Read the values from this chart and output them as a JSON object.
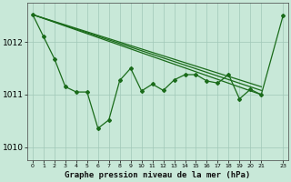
{
  "title": "Graphe pression niveau de la mer (hPa)",
  "bg_color": "#c8e8d8",
  "line_color": "#1a6b1a",
  "grid_color": "#a0c8b8",
  "xlim": [
    -0.5,
    23.5
  ],
  "ylim": [
    1009.75,
    1012.75
  ],
  "yticks": [
    1010,
    1011,
    1012
  ],
  "xtick_labels": [
    "0",
    "1",
    "2",
    "3",
    "4",
    "5",
    "6",
    "7",
    "8",
    "9",
    "10",
    "11",
    "12",
    "13",
    "14",
    "15",
    "16",
    "17",
    "18",
    "19",
    "20",
    "21",
    "23"
  ],
  "xtick_pos": [
    0,
    1,
    2,
    3,
    4,
    5,
    6,
    7,
    8,
    9,
    10,
    11,
    12,
    13,
    14,
    15,
    16,
    17,
    18,
    19,
    20,
    21,
    23
  ],
  "smooth_line1_x": [
    0,
    21
  ],
  "smooth_line1_y": [
    1012.52,
    1011.0
  ],
  "smooth_line2_x": [
    0,
    21
  ],
  "smooth_line2_y": [
    1012.52,
    1011.08
  ],
  "smooth_line3_x": [
    0,
    21
  ],
  "smooth_line3_y": [
    1012.52,
    1011.15
  ],
  "zigzag_x": [
    0,
    1,
    2,
    3,
    4,
    5,
    6,
    7,
    8,
    9,
    10,
    11,
    12,
    13,
    14,
    15,
    16,
    17,
    18,
    19,
    20,
    21,
    23
  ],
  "zigzag_y": [
    1012.52,
    1012.1,
    1011.68,
    1011.15,
    1011.05,
    1011.05,
    1010.36,
    1010.52,
    1011.27,
    1011.5,
    1011.07,
    1011.2,
    1011.08,
    1011.28,
    1011.38,
    1011.38,
    1011.26,
    1011.22,
    1011.38,
    1010.92,
    1011.1,
    1011.0,
    1012.5
  ]
}
